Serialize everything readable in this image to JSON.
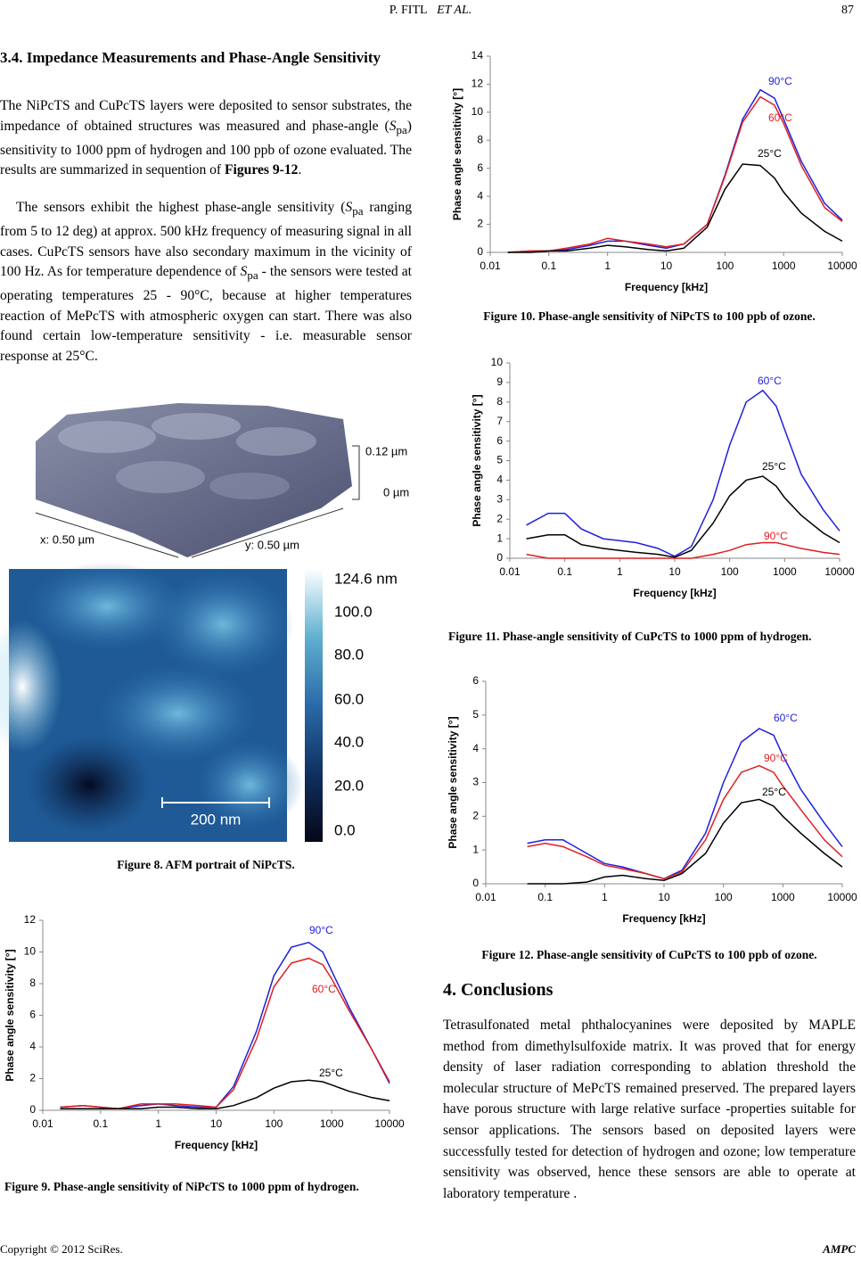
{
  "document": {
    "header": {
      "author": "P. FITL",
      "etal": "ET AL.",
      "page": "87"
    },
    "section": {
      "title": "3.4. Impedance Measurements and Phase-Angle Sensitivity",
      "paragraphs": [
        [
          "The NiPcTS and CuPcTS layers were deposited to sensor substrates, the impedance of obtained structures was measured and phase-angle (",
          "S",
          "pa",
          ") sensitivity to 1000 ppm of hydrogen and 100 ppb of ozone evaluated. The results are summarized in sequention of ",
          "Figures 9-12",
          "."
        ],
        [
          "The sensors exhibit the highest phase-angle sensitivity (",
          "S",
          "pa",
          " ranging from 5 to 12 deg) at approx. 500 kHz frequency of measuring signal in all cases. CuPcTS sensors have also secondary maximum in the vicinity of 100 Hz. As for temperature dependence of ",
          "S",
          "pa",
          " - the sensors were tested at operating temperatures 25 - 90°C, because at higher temperatures reaction of MePcTS with atmospheric oxygen can start.  There was also found certain low-temperature sensitivity - i.e. measurable sensor response at 25°C."
        ]
      ]
    },
    "figure8": {
      "z_top": "0.12 µm",
      "z_bottom": "0 µm",
      "x_size": "x: 0.50 µm",
      "y_size": "y: 0.50 µm",
      "colorbar": [
        "124.6 nm",
        "100.0",
        "80.0",
        "60.0",
        "40.0",
        "20.0",
        "0.0"
      ],
      "scale_bar": "200 nm",
      "caption": "Figure 8. AFM portrait of NiPcTS."
    },
    "conclusions": {
      "title": "4. Conclusions",
      "text": "Tetrasulfonated metal phthalocyanines were deposited by MAPLE method from dimethylsulfoxide matrix. It was proved that for energy density of laser radiation corresponding to ablation threshold the molecular structure of MePcTS remained preserved. The prepared layers have porous structure with large relative surface -properties suitable for sensor applications. The sensors based on deposited layers were successfully tested for detection of hydrogen and ozone; low temperature sensitivity was observed, hence these sensors are able to operate at laboratory temperature ."
    },
    "footer": {
      "copyright": "Copyright © 2012 SciRes.",
      "journal": "AMPC"
    }
  },
  "chart_data": [
    {
      "type": "line",
      "caption": "Figure 9. Phase-angle sensitivity of NiPcTS to 1000 ppm of hydrogen.",
      "xlabel": "Frequency [kHz]",
      "ylabel": "Phase angle sensitivity [°]",
      "xscale": "log",
      "xlim": [
        0.01,
        10000
      ],
      "xticks": [
        0.01,
        0.1,
        1,
        10,
        100,
        1000,
        10000
      ],
      "ylim": [
        0,
        12
      ],
      "yticks": [
        0,
        2,
        4,
        6,
        8,
        10,
        12
      ],
      "x": [
        0.02,
        0.05,
        0.1,
        0.2,
        0.5,
        1,
        2,
        5,
        10,
        20,
        50,
        100,
        200,
        400,
        700,
        1000,
        2000,
        5000,
        10000
      ],
      "series": [
        {
          "name": "90°C",
          "color": "#1f1fe0",
          "values": [
            0.2,
            0.3,
            0.2,
            0.1,
            0.3,
            0.4,
            0.3,
            0.2,
            0.2,
            1.5,
            5,
            8.5,
            10.3,
            10.6,
            10,
            8.8,
            6.5,
            3.8,
            1.7
          ]
        },
        {
          "name": "60°C",
          "color": "#e01f1f",
          "values": [
            0.2,
            0.3,
            0.2,
            0.1,
            0.4,
            0.4,
            0.4,
            0.3,
            0.2,
            1.3,
            4.5,
            7.8,
            9.3,
            9.6,
            9.2,
            8.3,
            6.3,
            3.8,
            1.8
          ]
        },
        {
          "name": "25°C",
          "color": "#000000",
          "values": [
            0.1,
            0.1,
            0.1,
            0.1,
            0.1,
            0.2,
            0.2,
            0.1,
            0.1,
            0.3,
            0.8,
            1.4,
            1.8,
            1.9,
            1.8,
            1.6,
            1.2,
            0.8,
            0.6
          ]
        }
      ]
    },
    {
      "type": "line",
      "caption": "Figure 10. Phase-angle sensitivity of NiPcTS to 100 ppb of ozone.",
      "xlabel": "Frequency [kHz]",
      "ylabel": "Phase angle sensitivity [°]",
      "xscale": "log",
      "xlim": [
        0.01,
        10000
      ],
      "xticks": [
        0.01,
        0.1,
        1,
        10,
        100,
        1000,
        10000
      ],
      "ylim": [
        0,
        14
      ],
      "yticks": [
        0,
        2,
        4,
        6,
        8,
        10,
        12,
        14
      ],
      "x": [
        0.02,
        0.05,
        0.1,
        0.2,
        0.5,
        1,
        2,
        5,
        10,
        20,
        50,
        100,
        200,
        400,
        700,
        1000,
        2000,
        5000,
        10000
      ],
      "series": [
        {
          "name": "90°C",
          "color": "#1f1fe0",
          "values": [
            0,
            0.1,
            0.1,
            0.2,
            0.5,
            0.8,
            0.8,
            0.5,
            0.3,
            0.6,
            2,
            5.5,
            9.5,
            11.6,
            11,
            9.5,
            6.5,
            3.5,
            2.3
          ]
        },
        {
          "name": "60°C",
          "color": "#e01f1f",
          "values": [
            0,
            0.1,
            0.1,
            0.3,
            0.6,
            1,
            0.8,
            0.6,
            0.4,
            0.6,
            2,
            5.4,
            9.3,
            11.1,
            10.5,
            9.2,
            6.2,
            3.2,
            2.2
          ]
        },
        {
          "name": "25°C",
          "color": "#000000",
          "values": [
            0,
            0,
            0.1,
            0.1,
            0.3,
            0.5,
            0.4,
            0.2,
            0.1,
            0.3,
            1.8,
            4.5,
            6.3,
            6.2,
            5.3,
            4.3,
            2.8,
            1.5,
            0.8
          ]
        }
      ]
    },
    {
      "type": "line",
      "caption": "Figure 11. Phase-angle sensitivity of CuPcTS to 1000 ppm of hydrogen.",
      "xlabel": "Frequency [kHz]",
      "ylabel": "Phase angle sensitivity [°]",
      "xscale": "log",
      "xlim": [
        0.01,
        10000
      ],
      "xticks": [
        0.01,
        0.1,
        1,
        10,
        100,
        1000,
        10000
      ],
      "ylim": [
        0,
        10
      ],
      "yticks": [
        0,
        1,
        2,
        3,
        4,
        5,
        6,
        7,
        8,
        9,
        10
      ],
      "x": [
        0.02,
        0.05,
        0.1,
        0.2,
        0.5,
        1,
        2,
        5,
        10,
        20,
        50,
        100,
        200,
        400,
        700,
        1000,
        2000,
        5000,
        10000
      ],
      "series": [
        {
          "name": "60°C",
          "color": "#1f1fe0",
          "values": [
            1.7,
            2.3,
            2.3,
            1.5,
            1.0,
            0.9,
            0.8,
            0.5,
            0.1,
            0.6,
            3,
            5.8,
            8,
            8.6,
            7.8,
            6.6,
            4.3,
            2.5,
            1.4
          ]
        },
        {
          "name": "25°C",
          "color": "#000000",
          "values": [
            1.0,
            1.2,
            1.2,
            0.7,
            0.5,
            0.4,
            0.3,
            0.2,
            0.05,
            0.4,
            1.8,
            3.2,
            4,
            4.2,
            3.7,
            3.1,
            2.2,
            1.3,
            0.8
          ]
        },
        {
          "name": "90°C",
          "color": "#e01f1f",
          "values": [
            0.2,
            0,
            0,
            0,
            0,
            0,
            0,
            0,
            0,
            0,
            0.2,
            0.4,
            0.7,
            0.8,
            0.8,
            0.7,
            0.5,
            0.3,
            0.2
          ]
        }
      ]
    },
    {
      "type": "line",
      "caption": "Figure 12. Phase-angle sensitivity of CuPcTS to 100 ppb of ozone.",
      "xlabel": "Frequency [kHz]",
      "ylabel": "Phase angle sensitivity [°]",
      "xscale": "log",
      "xlim": [
        0.01,
        10000
      ],
      "xticks": [
        0.01,
        0.1,
        1,
        10,
        100,
        1000,
        10000
      ],
      "ylim": [
        0,
        6
      ],
      "yticks": [
        0,
        1,
        2,
        3,
        4,
        5,
        6
      ],
      "x": [
        0.02,
        0.05,
        0.1,
        0.2,
        0.5,
        1,
        2,
        5,
        10,
        20,
        50,
        100,
        200,
        400,
        700,
        1000,
        2000,
        5000,
        10000
      ],
      "series": [
        {
          "name": "60°C",
          "color": "#1f1fe0",
          "values": [
            null,
            1.2,
            1.3,
            1.3,
            0.9,
            0.6,
            0.5,
            0.3,
            0.15,
            0.4,
            1.5,
            3,
            4.2,
            4.6,
            4.4,
            3.8,
            2.8,
            1.8,
            1.1
          ]
        },
        {
          "name": "90°C",
          "color": "#e01f1f",
          "values": [
            null,
            1.1,
            1.2,
            1.1,
            0.8,
            0.55,
            0.45,
            0.3,
            0.15,
            0.35,
            1.3,
            2.5,
            3.3,
            3.5,
            3.3,
            2.9,
            2.2,
            1.3,
            0.8
          ]
        },
        {
          "name": "25°C",
          "color": "#000000",
          "values": [
            null,
            0,
            0,
            0,
            0.05,
            0.2,
            0.25,
            0.15,
            0.1,
            0.3,
            0.9,
            1.8,
            2.4,
            2.5,
            2.3,
            2,
            1.5,
            0.9,
            0.5
          ]
        }
      ]
    }
  ]
}
